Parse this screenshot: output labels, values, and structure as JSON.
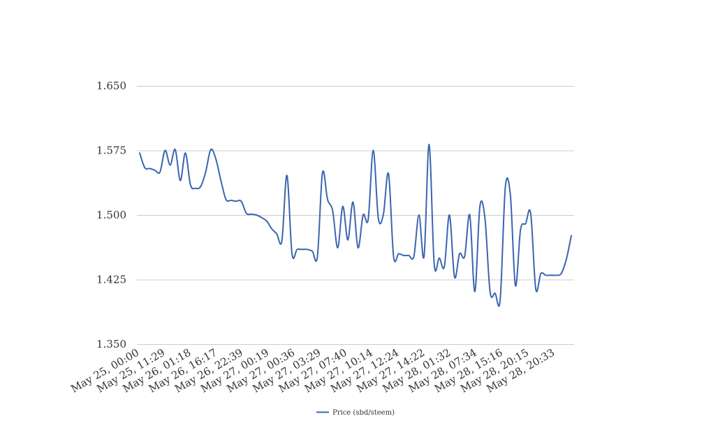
{
  "chart_data": {
    "type": "line",
    "title": "",
    "xlabel": "",
    "ylabel": "",
    "ylim": [
      1.35,
      1.65
    ],
    "yticks": [
      "1.350",
      "1.425",
      "1.500",
      "1.575",
      "1.650"
    ],
    "grid": true,
    "legend_position": "bottom",
    "x_tick_labels": [
      "May 25, 00:00",
      "May 25, 11:29",
      "May 26, 01:18",
      "May 26, 16:17",
      "May 26, 22:39",
      "May 27, 00:19",
      "May 27, 00:36",
      "May 27, 03:29",
      "May 27, 07:40",
      "May 27, 10:14",
      "May 27, 12:24",
      "May 27, 14:22",
      "May 28, 01:32",
      "May 28, 07:34",
      "May 28, 15:16",
      "May 28, 20:15",
      "May 28, 20:33"
    ],
    "series": [
      {
        "name": "Price (sbd/steem)",
        "color": "#3a65b0",
        "values": [
          1.572,
          1.555,
          1.554,
          1.552,
          1.55,
          1.575,
          1.558,
          1.576,
          1.54,
          1.572,
          1.535,
          1.531,
          1.533,
          1.55,
          1.576,
          1.565,
          1.54,
          1.518,
          1.517,
          1.516,
          1.516,
          1.502,
          1.501,
          1.5,
          1.497,
          1.493,
          1.484,
          1.478,
          1.47,
          1.546,
          1.455,
          1.46,
          1.46,
          1.46,
          1.458,
          1.452,
          1.549,
          1.518,
          1.505,
          1.462,
          1.51,
          1.471,
          1.515,
          1.462,
          1.5,
          1.495,
          1.575,
          1.496,
          1.501,
          1.548,
          1.452,
          1.455,
          1.453,
          1.453,
          1.452,
          1.5,
          1.452,
          1.582,
          1.443,
          1.45,
          1.44,
          1.5,
          1.428,
          1.455,
          1.452,
          1.5,
          1.411,
          1.51,
          1.496,
          1.411,
          1.409,
          1.402,
          1.532,
          1.523,
          1.418,
          1.483,
          1.49,
          1.502,
          1.414,
          1.432,
          1.43,
          1.43,
          1.43,
          1.432,
          1.448,
          1.476
        ]
      }
    ]
  }
}
